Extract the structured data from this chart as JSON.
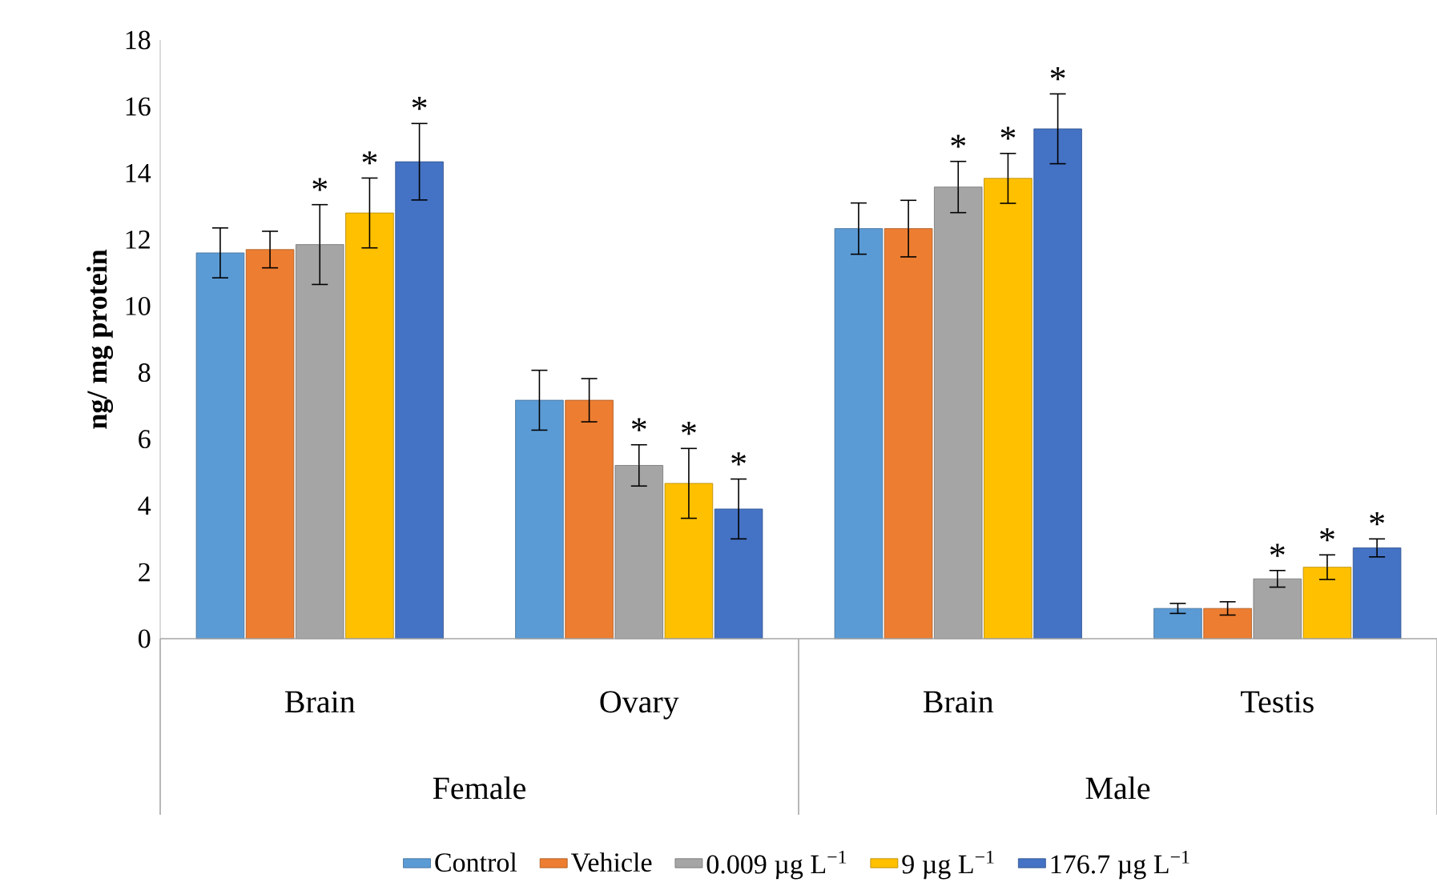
{
  "chart_data": {
    "type": "bar",
    "ylabel": "ng/ mg protein",
    "categories": [
      "Brain",
      "Ovary",
      "Brain",
      "Testis"
    ],
    "annotations": [
      "Female",
      "Male"
    ],
    "ylim": [
      0,
      18
    ],
    "yticks": [
      0,
      2,
      4,
      6,
      8,
      10,
      12,
      14,
      16,
      18
    ],
    "legend": "bottom",
    "series": [
      {
        "name": "Control",
        "color": "#5b9bd5",
        "values": [
          11.6,
          7.17,
          12.33,
          0.91
        ],
        "errors": [
          0.75,
          0.9,
          0.77,
          0.15
        ],
        "value_labels": [
          null,
          null,
          null,
          null
        ]
      },
      {
        "name": "Vehicle",
        "color": "#ed7d31",
        "values": [
          11.7,
          7.17,
          12.33,
          0.91
        ],
        "errors": [
          0.55,
          0.65,
          0.85,
          0.2
        ],
        "value_labels": [
          null,
          null,
          null,
          null
        ]
      },
      {
        "name": "0.009 µg L$^{−1}$",
        "color": "#a5a5a5",
        "values": [
          11.85,
          5.21,
          13.58,
          1.8
        ],
        "errors": [
          1.2,
          0.62,
          0.77,
          0.25
        ],
        "value_labels": [
          "*",
          "*",
          "*",
          "*"
        ]
      },
      {
        "name": "9 µg L$^{−1}$",
        "color": "#ffc000",
        "values": [
          12.8,
          4.67,
          13.84,
          2.15
        ],
        "errors": [
          1.05,
          1.05,
          0.75,
          0.37
        ],
        "value_labels": [
          "*",
          "*",
          "*",
          "*"
        ]
      },
      {
        "name": "176.7 µg L$^{−1}$",
        "color": "#4472c4",
        "values": [
          14.34,
          3.9,
          15.33,
          2.73
        ],
        "errors": [
          1.15,
          0.9,
          1.05,
          0.27
        ],
        "value_labels": [
          "*",
          "*",
          "*",
          "*"
        ]
      }
    ]
  }
}
